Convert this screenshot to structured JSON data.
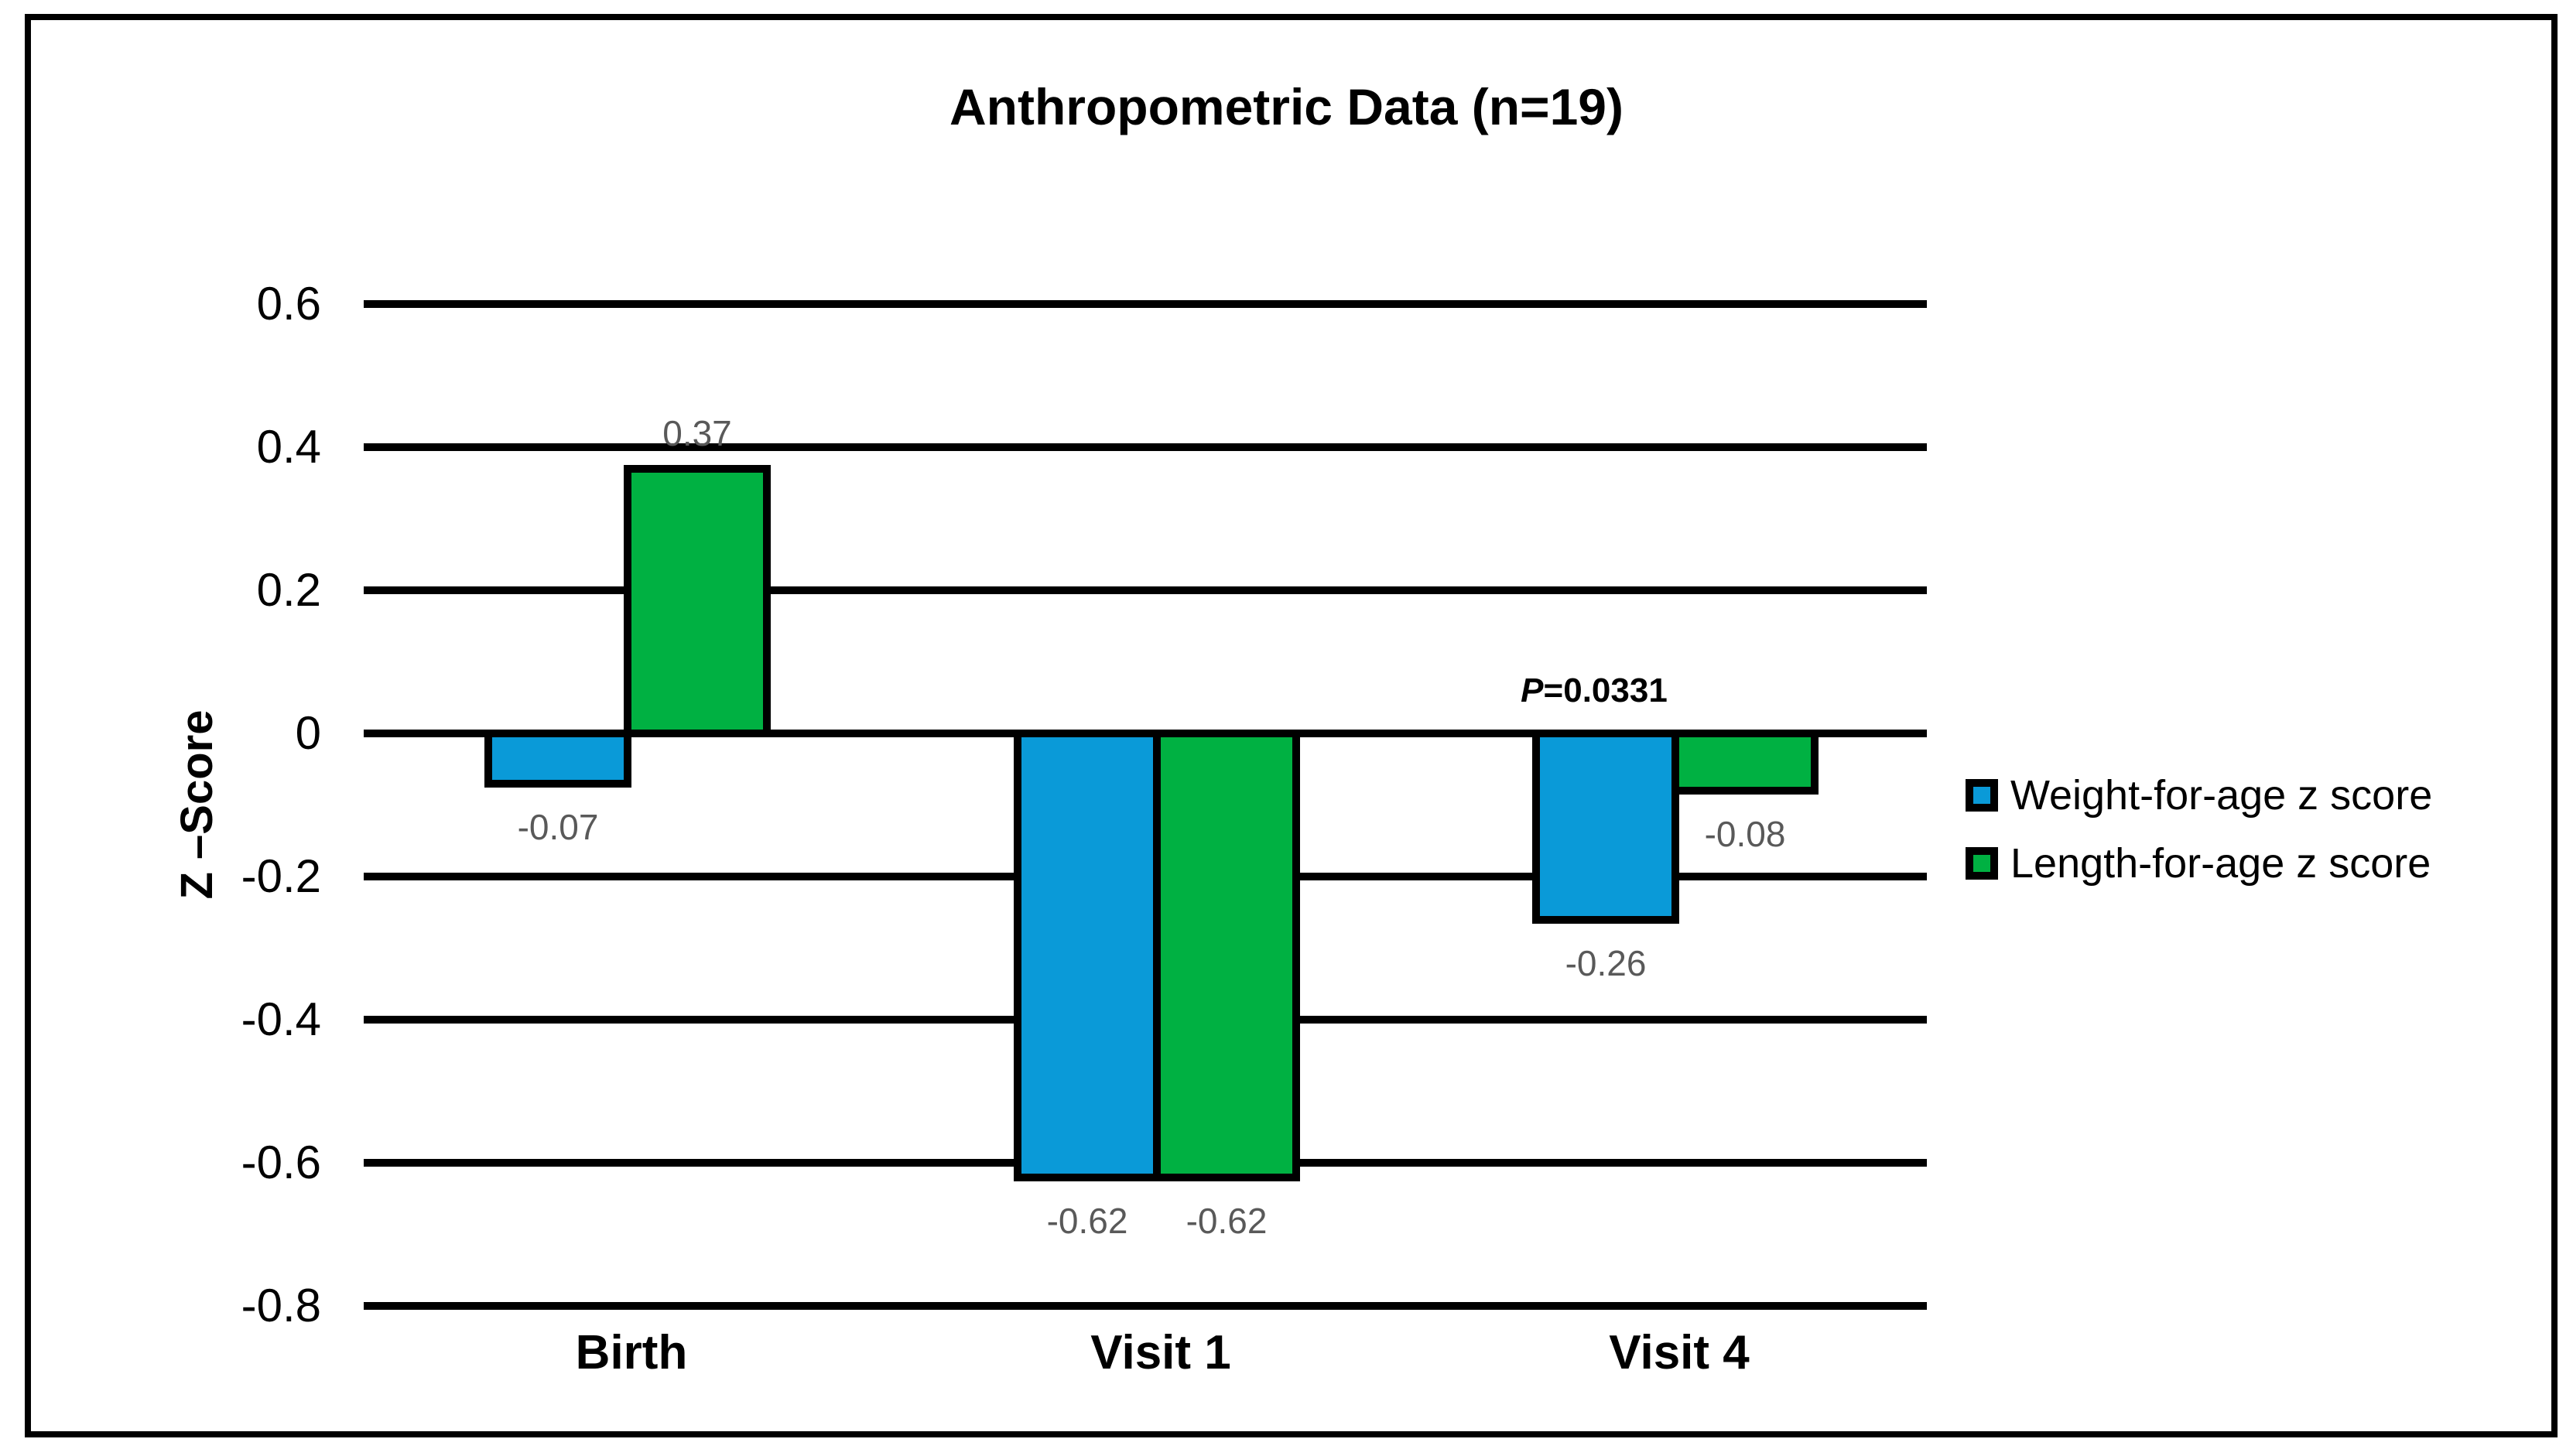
{
  "chart_data": {
    "type": "bar",
    "title": "Anthropometric Data (n=19)",
    "ylabel": "Z –Score",
    "xlabel": "",
    "ylim": [
      -0.8,
      0.6
    ],
    "ytick_step": 0.2,
    "grid": "horizontal",
    "legend_position": "right",
    "categories": [
      "Birth",
      "Visit 1",
      "Visit 4"
    ],
    "yticks": [
      {
        "label": "0.6",
        "value": 0.6
      },
      {
        "label": "0.4",
        "value": 0.4
      },
      {
        "label": "0.2",
        "value": 0.2
      },
      {
        "label": "0",
        "value": 0
      },
      {
        "label": "-0.2",
        "value": -0.2
      },
      {
        "label": "-0.4",
        "value": -0.4
      },
      {
        "label": "-0.6",
        "value": -0.6
      },
      {
        "label": "-0.8",
        "value": -0.8
      }
    ],
    "series": [
      {
        "name": "Weight-for-age z score",
        "color": "#0A9AD8",
        "values": [
          -0.07,
          -0.62,
          -0.26
        ],
        "value_labels": [
          "-0.07",
          "-0.62",
          "-0.26"
        ]
      },
      {
        "name": "Length-for-age z score",
        "color": "#00B142",
        "values": [
          0.37,
          -0.62,
          -0.08
        ],
        "value_labels": [
          "0.37",
          "-0.62",
          "-0.08"
        ]
      }
    ],
    "annotation": {
      "prefix": "P",
      "text": "=0.0331",
      "category": "Visit 4",
      "series": "Weight-for-age z score"
    }
  },
  "style_colors": {
    "bar_border": "#000000",
    "gridline": "#000000",
    "value_label": "#595959",
    "text": "#000000",
    "background": "#FFFFFF"
  }
}
